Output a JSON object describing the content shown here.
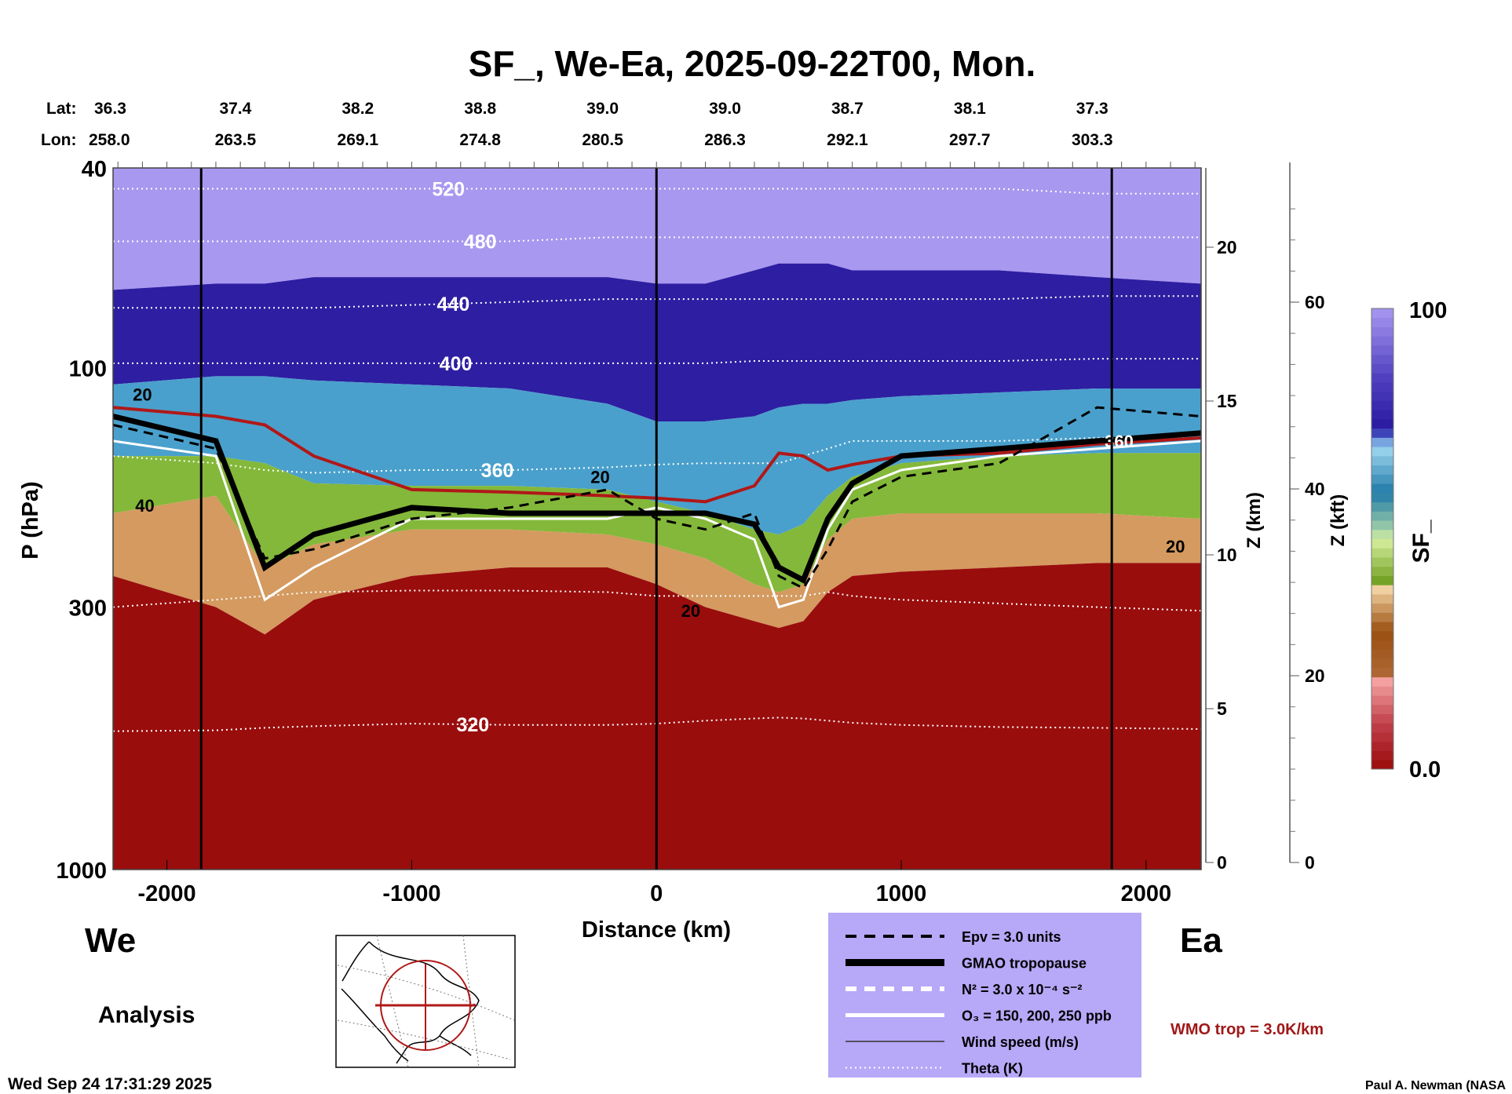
{
  "chart_data": {
    "type": "heatmap",
    "title": "SF_, We-Ea, 2025-09-22T00, Mon.",
    "xlabel": "Distance (km)",
    "ylabel": "P (hPa)",
    "y2label": "Z (km)",
    "y3label": "Z (kft)",
    "colorbar_label": "SF_",
    "colorbar_ticks": [
      "0.0",
      "100"
    ],
    "colorbar_range": [
      0,
      100
    ],
    "xlim": [
      -2220,
      2225
    ],
    "ylim_hpa": [
      40,
      1000
    ],
    "x_ticks": [
      {
        "v": -2000,
        "label": "-2000"
      },
      {
        "v": -1000,
        "label": "-1000"
      },
      {
        "v": 0,
        "label": "0"
      },
      {
        "v": 1000,
        "label": "1000"
      },
      {
        "v": 2000,
        "label": "2000"
      }
    ],
    "p_ticks": [
      {
        "v": 40,
        "label": "40"
      },
      {
        "v": 100,
        "label": "100"
      },
      {
        "v": 300,
        "label": "300"
      },
      {
        "v": 1000,
        "label": "1000"
      }
    ],
    "z_km_ticks": [
      {
        "v": 0,
        "label": "0"
      },
      {
        "v": 5,
        "label": "5"
      },
      {
        "v": 10,
        "label": "10"
      },
      {
        "v": 15,
        "label": "15"
      },
      {
        "v": 20,
        "label": "20"
      }
    ],
    "z_kft_ticks": [
      {
        "v": 0,
        "label": "0"
      },
      {
        "v": 20,
        "label": "20"
      },
      {
        "v": 40,
        "label": "40"
      },
      {
        "v": 60,
        "label": "60"
      }
    ],
    "lat_label": "Lat:",
    "lon_label": "Lon:",
    "lat": [
      "36.3",
      "37.4",
      "38.2",
      "38.8",
      "39.0",
      "39.0",
      "38.7",
      "38.1",
      "37.3"
    ],
    "lon": [
      "258.0",
      "263.5",
      "269.1",
      "274.8",
      "280.5",
      "286.3",
      "292.1",
      "297.7",
      "303.3"
    ],
    "vertical_markers_km": [
      -1860,
      0,
      1860
    ],
    "x_grid_km": [
      -2220,
      -1800,
      -1600,
      -1400,
      -1000,
      -600,
      -200,
      0,
      200,
      400,
      500,
      600,
      700,
      800,
      1000,
      1400,
      1800,
      2225
    ],
    "sf_bands": [
      {
        "sf_top": 100,
        "sf_bottom": 90,
        "p_bottom": [
          70,
          68,
          68,
          66,
          66,
          66,
          66,
          68,
          68,
          64,
          62,
          62,
          62,
          64,
          64,
          64,
          66,
          68
        ]
      },
      {
        "sf_top": 90,
        "sf_bottom": 75,
        "p_bottom": [
          108,
          104,
          104,
          106,
          108,
          110,
          118,
          128,
          128,
          125,
          120,
          118,
          118,
          116,
          114,
          112,
          110,
          110
        ]
      },
      {
        "sf_top": 75,
        "sf_bottom": 60,
        "p_bottom": [
          150,
          150,
          155,
          170,
          172,
          172,
          175,
          185,
          195,
          210,
          215,
          205,
          180,
          165,
          155,
          150,
          148,
          148
        ]
      },
      {
        "sf_top": 60,
        "sf_bottom": 40,
        "p_bottom": [
          195,
          180,
          250,
          225,
          210,
          210,
          215,
          225,
          240,
          270,
          280,
          270,
          220,
          200,
          195,
          195,
          195,
          200
        ]
      },
      {
        "sf_top": 40,
        "sf_bottom": 20,
        "p_bottom": [
          260,
          300,
          340,
          290,
          260,
          250,
          250,
          270,
          300,
          320,
          330,
          320,
          280,
          260,
          255,
          250,
          245,
          245
        ]
      },
      {
        "sf_top": 20,
        "sf_bottom": 0,
        "p_bottom": [
          1000,
          1000,
          1000,
          1000,
          1000,
          1000,
          1000,
          1000,
          1000,
          1000,
          1000,
          1000,
          1000,
          1000,
          1000,
          1000,
          1000,
          1000
        ]
      }
    ],
    "band_colors": [
      "#a898f0",
      "#2e1ea2",
      "#4aa0cc",
      "#84b83a",
      "#d49a60",
      "#9a0d0d"
    ],
    "theta_lines": [
      {
        "label": "520",
        "label_x": -850,
        "p": [
          44,
          44,
          44,
          44,
          44,
          44,
          44,
          44,
          44,
          44,
          44,
          44,
          44,
          44,
          44,
          44,
          45,
          45
        ]
      },
      {
        "label": "480",
        "label_x": -720,
        "p": [
          56,
          56,
          56,
          56,
          56,
          56,
          55,
          55,
          55,
          55,
          55,
          55,
          55,
          55,
          55,
          55,
          55,
          55
        ]
      },
      {
        "label": "440",
        "label_x": -830,
        "p": [
          76,
          76,
          76,
          76,
          75,
          74,
          73,
          73,
          73,
          73,
          73,
          73,
          73,
          73,
          73,
          73,
          72,
          72
        ]
      },
      {
        "label": "400",
        "label_x": -820,
        "p": [
          98,
          98,
          98,
          98,
          98,
          98,
          98,
          98,
          98,
          97,
          97,
          97,
          97,
          97,
          97,
          97,
          96,
          96
        ]
      },
      {
        "label": "360",
        "label_x": -650,
        "p": [
          150,
          155,
          160,
          162,
          160,
          160,
          158,
          156,
          155,
          155,
          155,
          150,
          145,
          140,
          140,
          140,
          138,
          138
        ]
      },
      {
        "label": "320",
        "label_x": -750,
        "p": [
          530,
          528,
          522,
          518,
          512,
          515,
          515,
          512,
          505,
          500,
          498,
          500,
          505,
          510,
          515,
          520,
          522,
          525
        ]
      },
      {
        "label": "",
        "label_x": 0,
        "p": [
          300,
          290,
          285,
          280,
          278,
          278,
          280,
          285,
          285,
          285,
          285,
          285,
          280,
          285,
          290,
          295,
          300,
          305
        ]
      }
    ],
    "gmao_tropopause_p": [
      125,
      140,
      250,
      215,
      190,
      195,
      195,
      195,
      195,
      205,
      250,
      265,
      200,
      170,
      150,
      145,
      140,
      135
    ],
    "wmo_tropopause_p": [
      120,
      125,
      130,
      150,
      175,
      177,
      180,
      182,
      185,
      172,
      148,
      150,
      160,
      156,
      150,
      148,
      142,
      138
    ],
    "epv_p": [
      130,
      145,
      240,
      230,
      200,
      190,
      175,
      200,
      210,
      195,
      260,
      275,
      230,
      185,
      165,
      155,
      120,
      125
    ],
    "ozone_p": [
      140,
      150,
      290,
      250,
      200,
      200,
      200,
      190,
      200,
      220,
      300,
      290,
      210,
      175,
      160,
      150,
      145,
      140
    ],
    "wind_labels": [
      {
        "label": "20",
        "x": -2100,
        "p": 113
      },
      {
        "label": "40",
        "x": -2090,
        "p": 188
      },
      {
        "label": "20",
        "x": -230,
        "p": 165
      },
      {
        "label": "20",
        "x": 140,
        "p": 305
      },
      {
        "label": "20",
        "x": 2120,
        "p": 227
      },
      {
        "label": "360",
        "x": 1890,
        "p": 140
      }
    ]
  },
  "labels": {
    "west": "We",
    "east": "Ea",
    "analysis": "Analysis",
    "timestamp": "Wed Sep 24 17:31:29 2025",
    "credit": "Paul A. Newman (NASA",
    "wmo": "WMO trop = 3.0K/km"
  },
  "legend": {
    "items": [
      {
        "style": "dash-black",
        "label": "Epv = 3.0 units"
      },
      {
        "style": "thick-black",
        "label": "GMAO tropopause"
      },
      {
        "style": "dash-white",
        "label": "N² = 3.0 x 10⁻⁴ s⁻²"
      },
      {
        "style": "solid-white",
        "label": "O₃ = 150, 200, 250 ppb"
      },
      {
        "style": "thin-black",
        "label": "Wind speed (m/s)"
      },
      {
        "style": "dot-white",
        "label": "Theta (K)"
      }
    ],
    "background": "#b8a8f8"
  }
}
